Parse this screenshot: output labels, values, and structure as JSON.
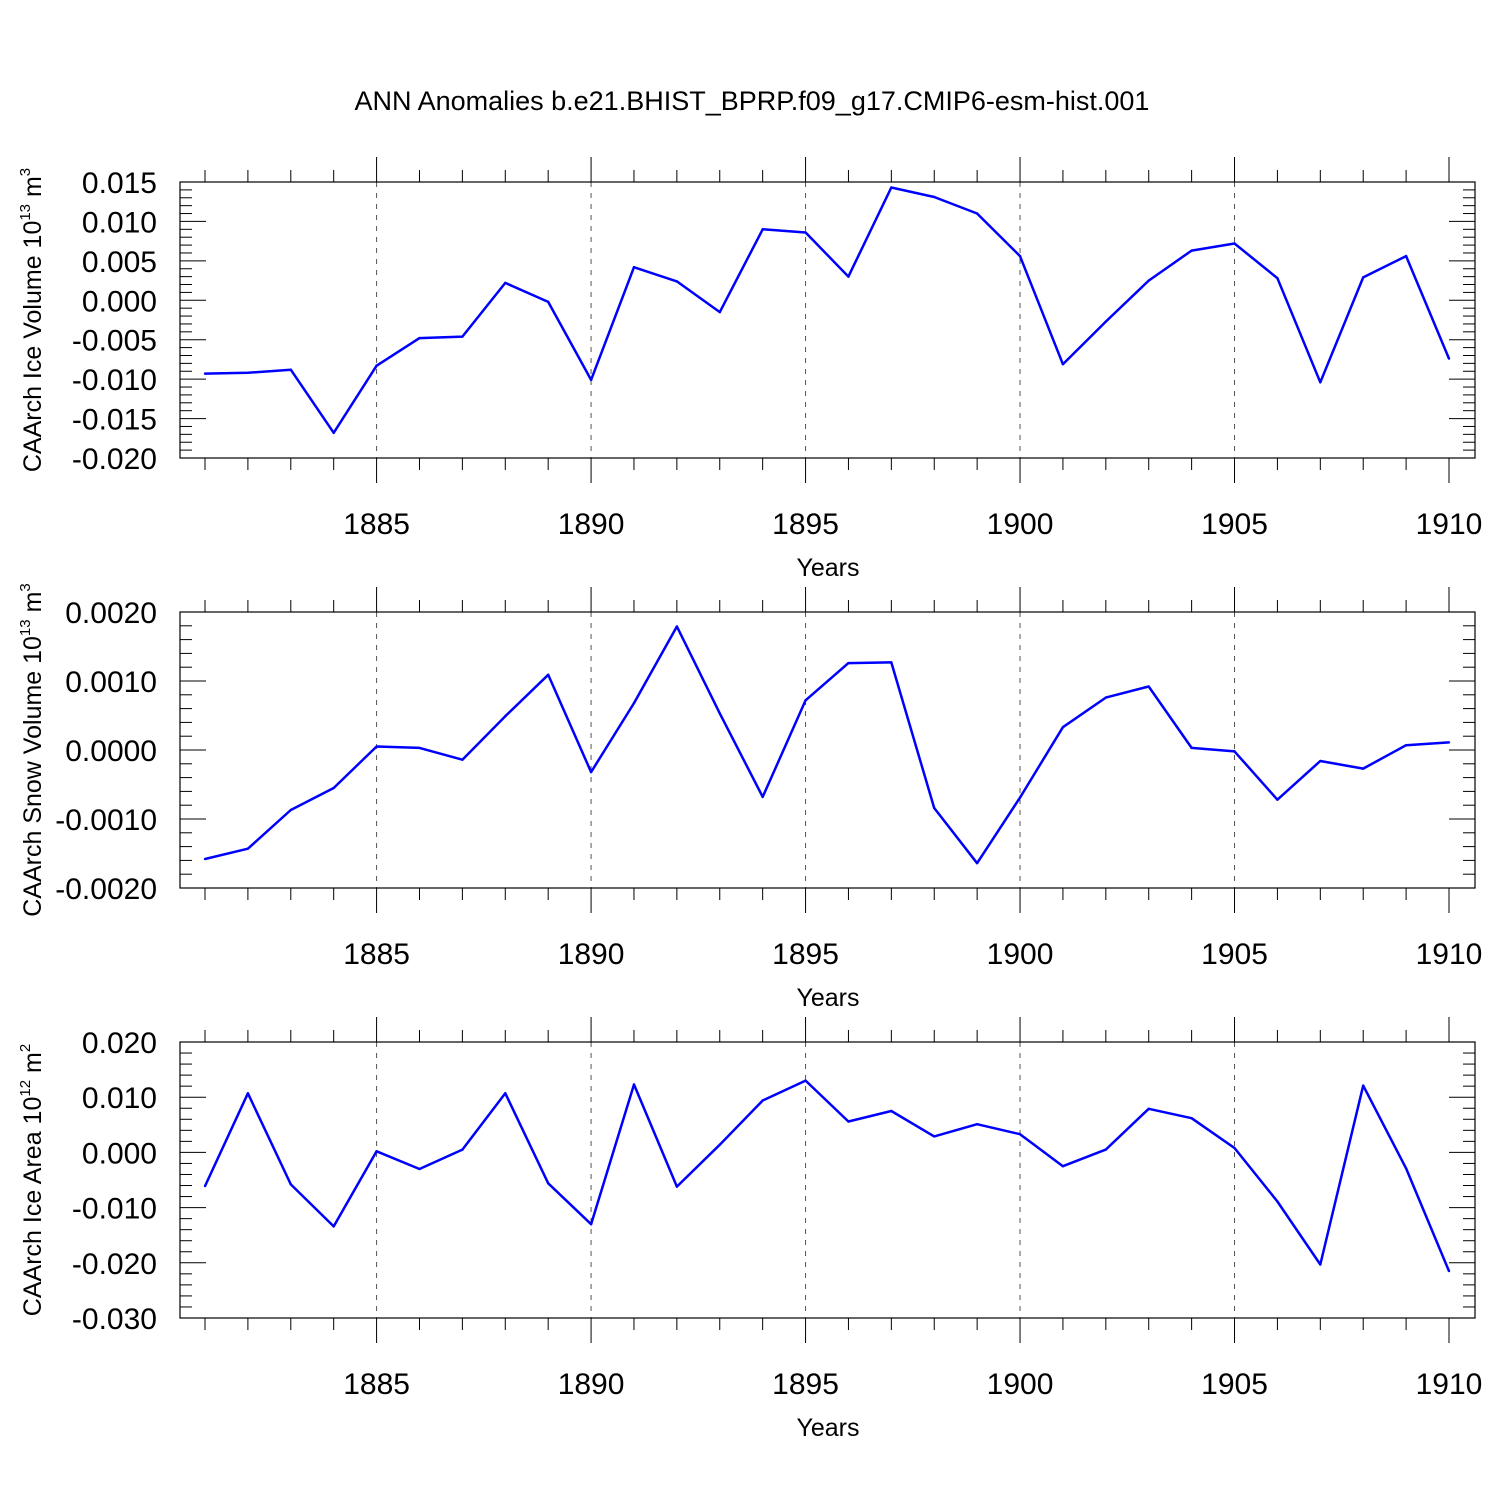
{
  "title": "ANN Anomalies b.e21.BHIST_BPRP.f09_g17.CMIP6-esm-hist.001",
  "chart_data": [
    {
      "type": "line",
      "ylabel": "CAArch Ice Volume 10",
      "ylabel_exp": "13",
      "ylabel_unit": " m",
      "ylabel_unit_exp": "3",
      "xlabel": "Years",
      "xlim": [
        1881,
        1910
      ],
      "ylim": [
        -0.02,
        0.015
      ],
      "xticks": [
        1885,
        1890,
        1895,
        1900,
        1905,
        1910
      ],
      "xtick_labels": [
        "1885",
        "1890",
        "1895",
        "1900",
        "1905",
        "1910"
      ],
      "yticks": [
        -0.02,
        -0.015,
        -0.01,
        -0.005,
        0.0,
        0.005,
        0.01,
        0.015
      ],
      "ytick_labels": [
        "-0.020",
        "-0.015",
        "-0.010",
        "-0.005",
        "0.000",
        "0.005",
        "0.010",
        "0.015"
      ],
      "grid": "vertical-dashed",
      "color": "#0000ff",
      "x": [
        1881,
        1882,
        1883,
        1884,
        1885,
        1886,
        1887,
        1888,
        1889,
        1890,
        1891,
        1892,
        1893,
        1894,
        1895,
        1896,
        1897,
        1898,
        1899,
        1900,
        1901,
        1902,
        1903,
        1904,
        1905,
        1906,
        1907,
        1908,
        1909,
        1910
      ],
      "y": [
        -0.0093,
        -0.0092,
        -0.0088,
        -0.0168,
        -0.0083,
        -0.0048,
        -0.0046,
        0.0022,
        -0.0002,
        -0.0101,
        0.0042,
        0.0024,
        -0.0015,
        0.009,
        0.0086,
        0.003,
        0.0143,
        0.0131,
        0.011,
        0.0056,
        -0.0081,
        -0.0027,
        0.0025,
        0.0063,
        0.0072,
        0.0028,
        -0.0104,
        0.0029,
        0.0056,
        -0.0074
      ]
    },
    {
      "type": "line",
      "ylabel": "CAArch Snow Volume 10",
      "ylabel_exp": "13",
      "ylabel_unit": " m",
      "ylabel_unit_exp": "3",
      "xlabel": "Years",
      "xlim": [
        1881,
        1910
      ],
      "ylim": [
        -0.002,
        0.002
      ],
      "xticks": [
        1885,
        1890,
        1895,
        1900,
        1905,
        1910
      ],
      "xtick_labels": [
        "1885",
        "1890",
        "1895",
        "1900",
        "1905",
        "1910"
      ],
      "yticks": [
        -0.002,
        -0.001,
        0.0,
        0.001,
        0.002
      ],
      "ytick_labels": [
        "-0.0020",
        "-0.0010",
        "0.0000",
        "0.0010",
        "0.0020"
      ],
      "grid": "vertical-dashed",
      "color": "#0000ff",
      "x": [
        1881,
        1882,
        1883,
        1884,
        1885,
        1886,
        1887,
        1888,
        1889,
        1890,
        1891,
        1892,
        1893,
        1894,
        1895,
        1896,
        1897,
        1898,
        1899,
        1900,
        1901,
        1902,
        1903,
        1904,
        1905,
        1906,
        1907,
        1908,
        1909,
        1910
      ],
      "y": [
        -0.00158,
        -0.00143,
        -0.00087,
        -0.00055,
        5e-05,
        3e-05,
        -0.00014,
        0.00049,
        0.00109,
        -0.00032,
        0.00068,
        0.00179,
        0.00053,
        -0.00068,
        0.00072,
        0.00126,
        0.00127,
        -0.00084,
        -0.00164,
        -0.00069,
        0.00033,
        0.00076,
        0.00092,
        3e-05,
        -2e-05,
        -0.00072,
        -0.00016,
        -0.00027,
        7e-05,
        0.00011
      ]
    },
    {
      "type": "line",
      "ylabel": "CAArch Ice Area 10",
      "ylabel_exp": "12",
      "ylabel_unit": " m",
      "ylabel_unit_exp": "2",
      "xlabel": "Years",
      "xlim": [
        1881,
        1910
      ],
      "ylim": [
        -0.03,
        0.02
      ],
      "xticks": [
        1885,
        1890,
        1895,
        1900,
        1905,
        1910
      ],
      "xtick_labels": [
        "1885",
        "1890",
        "1895",
        "1900",
        "1905",
        "1910"
      ],
      "yticks": [
        -0.03,
        -0.02,
        -0.01,
        0.0,
        0.01,
        0.02
      ],
      "ytick_labels": [
        "-0.030",
        "-0.020",
        "-0.010",
        "0.000",
        "0.010",
        "0.020"
      ],
      "grid": "vertical-dashed",
      "color": "#0000ff",
      "x": [
        1881,
        1882,
        1883,
        1884,
        1885,
        1886,
        1887,
        1888,
        1889,
        1890,
        1891,
        1892,
        1893,
        1894,
        1895,
        1896,
        1897,
        1898,
        1899,
        1900,
        1901,
        1902,
        1903,
        1904,
        1905,
        1906,
        1907,
        1908,
        1909,
        1910
      ],
      "y": [
        -0.0061,
        0.0107,
        -0.0058,
        -0.0134,
        0.0002,
        -0.003,
        0.0005,
        0.0107,
        -0.0056,
        -0.013,
        0.0123,
        -0.0062,
        0.0014,
        0.0094,
        0.013,
        0.0056,
        0.0075,
        0.0029,
        0.0051,
        0.0033,
        -0.0025,
        0.0005,
        0.0079,
        0.0062,
        0.0008,
        -0.0089,
        -0.0203,
        0.0121,
        -0.0029,
        -0.0215
      ]
    }
  ]
}
